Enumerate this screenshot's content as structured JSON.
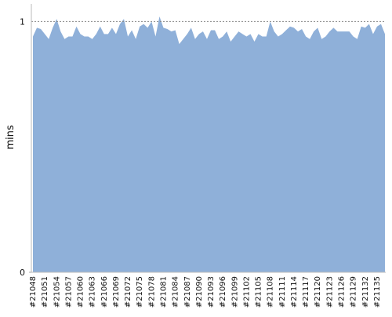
{
  "chart_data": {
    "type": "area",
    "y_label": "mins",
    "color": "#8fb0d9",
    "grid": true,
    "categories": [
      "#21048",
      null,
      null,
      "#21051",
      null,
      null,
      "#21054",
      null,
      null,
      "#21057",
      null,
      null,
      "#21060",
      null,
      null,
      "#21063",
      null,
      null,
      "#21066",
      null,
      null,
      "#21069",
      null,
      null,
      "#21072",
      null,
      null,
      "#21075",
      null,
      null,
      "#21078",
      null,
      null,
      "#21081",
      null,
      null,
      "#21084",
      null,
      null,
      "#21087",
      null,
      null,
      "#21090",
      null,
      null,
      "#21093",
      null,
      null,
      "#21096",
      null,
      null,
      "#21099",
      null,
      null,
      "#21102",
      null,
      null,
      "#21105",
      null,
      null,
      "#21108",
      null,
      null,
      "#21111",
      null,
      null,
      "#21114",
      null,
      null,
      "#21117",
      null,
      null,
      "#21120",
      null,
      null,
      "#21123",
      null,
      null,
      "#21126",
      null,
      null,
      "#21129",
      null,
      null,
      "#21132",
      null,
      null,
      "#21135",
      null,
      null
    ],
    "values": [
      0.94,
      0.975,
      0.97,
      0.95,
      0.93,
      0.975,
      1.01,
      0.96,
      0.93,
      0.94,
      0.94,
      0.98,
      0.95,
      0.94,
      0.94,
      0.93,
      0.95,
      0.98,
      0.95,
      0.95,
      0.975,
      0.95,
      0.99,
      1.01,
      0.94,
      0.965,
      0.93,
      0.98,
      0.99,
      0.975,
      1.0,
      0.94,
      1.02,
      0.975,
      0.97,
      0.96,
      0.965,
      0.91,
      0.93,
      0.95,
      0.975,
      0.93,
      0.95,
      0.96,
      0.93,
      0.965,
      0.965,
      0.93,
      0.94,
      0.96,
      0.92,
      0.94,
      0.96,
      0.95,
      0.94,
      0.95,
      0.92,
      0.95,
      0.94,
      0.94,
      1.0,
      0.96,
      0.94,
      0.95,
      0.965,
      0.98,
      0.975,
      0.96,
      0.97,
      0.94,
      0.93,
      0.96,
      0.975,
      0.93,
      0.94,
      0.96,
      0.975,
      0.96,
      0.96,
      0.96,
      0.96,
      0.94,
      0.93,
      0.98,
      0.975,
      0.99,
      0.95,
      0.98,
      0.99,
      0.95
    ],
    "ylim": [
      0,
      1.07
    ],
    "yticks": [
      0,
      1
    ]
  }
}
